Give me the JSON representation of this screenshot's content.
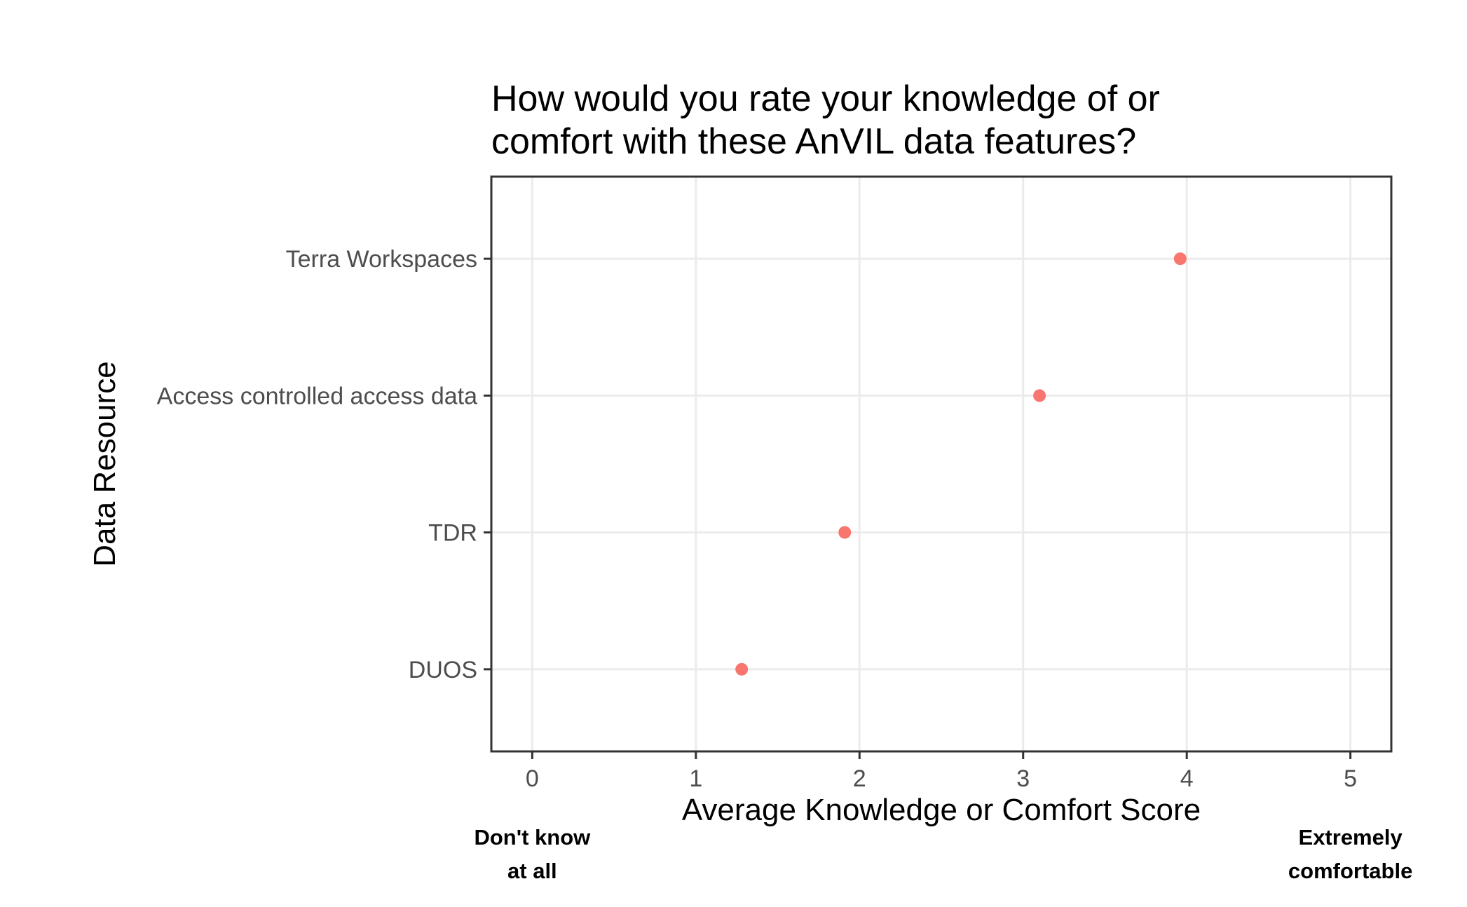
{
  "chart_data": {
    "type": "scatter",
    "title": [
      "How would you rate your knowledge of or",
      "comfort with these AnVIL data features?"
    ],
    "xlabel": "Average Knowledge or Comfort Score",
    "ylabel": "Data Resource",
    "xlim": [
      -0.25,
      5.25
    ],
    "xticks": [
      0,
      1,
      2,
      3,
      4,
      5
    ],
    "categories": [
      "Terra Workspaces",
      "Access controlled access data",
      "TDR",
      "DUOS"
    ],
    "values": [
      3.96,
      3.1,
      1.91,
      1.28
    ],
    "point_color": "#F8766D",
    "grid": true,
    "legend": "none",
    "anchor_labels": [
      {
        "x": 0,
        "lines": [
          "Don't know",
          "at all"
        ]
      },
      {
        "x": 5,
        "lines": [
          "Extremely",
          "comfortable"
        ]
      }
    ]
  }
}
